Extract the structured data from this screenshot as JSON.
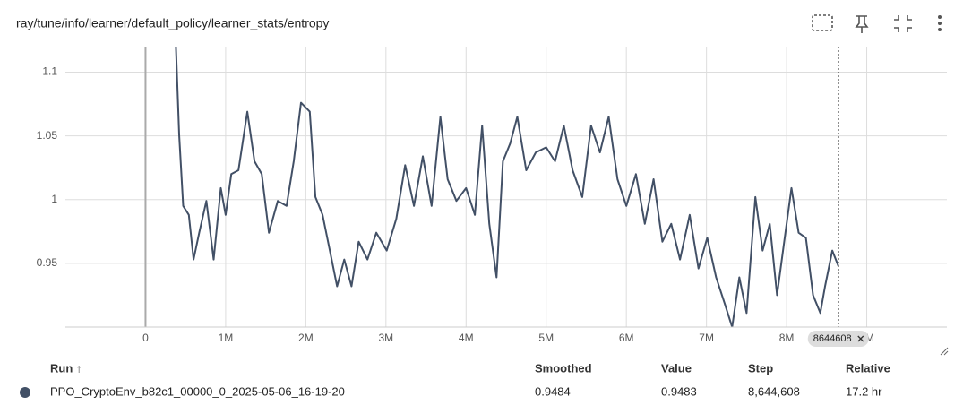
{
  "title": "ray/tune/info/learner/default_policy/learner_stats/entropy",
  "chart_data": {
    "type": "line",
    "x": [
      380000,
      420000,
      470000,
      540000,
      600000,
      670000,
      760000,
      850000,
      940000,
      1000000,
      1070000,
      1160000,
      1270000,
      1360000,
      1450000,
      1540000,
      1650000,
      1760000,
      1850000,
      1940000,
      2050000,
      2120000,
      2210000,
      2300000,
      2390000,
      2480000,
      2570000,
      2660000,
      2770000,
      2880000,
      3010000,
      3130000,
      3240000,
      3350000,
      3460000,
      3570000,
      3680000,
      3770000,
      3880000,
      4000000,
      4110000,
      4200000,
      4290000,
      4380000,
      4460000,
      4550000,
      4640000,
      4750000,
      4870000,
      5000000,
      5110000,
      5220000,
      5330000,
      5450000,
      5560000,
      5670000,
      5780000,
      5890000,
      6000000,
      6120000,
      6230000,
      6340000,
      6450000,
      6560000,
      6670000,
      6790000,
      6900000,
      7010000,
      7120000,
      7230000,
      7320000,
      7410000,
      7500000,
      7610000,
      7700000,
      7790000,
      7880000,
      7970000,
      8060000,
      8150000,
      8240000,
      8330000,
      8420000,
      8480000,
      8570000,
      8644608
    ],
    "series": [
      {
        "name": "PPO_CryptoEnv_b82c1_00000_0_2025-05-06_16-19-20",
        "color": "#425066",
        "values": [
          1.12,
          1.051,
          0.995,
          0.988,
          0.953,
          0.974,
          0.999,
          0.953,
          1.009,
          0.988,
          1.02,
          1.023,
          1.069,
          1.03,
          1.02,
          0.974,
          0.999,
          0.995,
          1.03,
          1.076,
          1.069,
          1.002,
          0.988,
          0.96,
          0.932,
          0.953,
          0.932,
          0.967,
          0.953,
          0.974,
          0.96,
          0.985,
          1.027,
          0.995,
          1.034,
          0.995,
          1.065,
          1.016,
          0.999,
          1.009,
          0.988,
          1.058,
          0.981,
          0.939,
          1.03,
          1.044,
          1.065,
          1.023,
          1.037,
          1.041,
          1.03,
          1.058,
          1.023,
          1.002,
          1.058,
          1.037,
          1.065,
          1.016,
          0.995,
          1.02,
          0.981,
          1.016,
          0.967,
          0.981,
          0.953,
          0.988,
          0.946,
          0.97,
          0.939,
          0.918,
          0.9,
          0.939,
          0.911,
          1.002,
          0.96,
          0.981,
          0.925,
          0.967,
          1.009,
          0.974,
          0.97,
          0.925,
          0.911,
          0.932,
          0.96,
          0.948
        ]
      }
    ],
    "xlim": [
      -1000000,
      10000000
    ],
    "xticks": [
      0,
      {
        "value": 1000000,
        "label": "1M"
      },
      {
        "value": 2000000,
        "label": "2M"
      },
      {
        "value": 3000000,
        "label": "3M"
      },
      {
        "value": 4000000,
        "label": "4M"
      },
      {
        "value": 5000000,
        "label": "5M"
      },
      {
        "value": 6000000,
        "label": "6M"
      },
      {
        "value": 7000000,
        "label": "7M"
      },
      {
        "value": 8000000,
        "label": "8M"
      },
      {
        "value": 9000000,
        "label": "9M"
      }
    ],
    "ylim": [
      0.9,
      1.12
    ],
    "yticks": [
      0.95,
      1,
      1.05,
      1.1
    ],
    "grid": true,
    "cursor": {
      "value": 8644608,
      "label": "8644608"
    }
  },
  "table": {
    "headers": [
      "Run ↑",
      "Smoothed",
      "Value",
      "Step",
      "Relative"
    ],
    "rows": [
      [
        "PPO_CryptoEnv_b82c1_00000_0_2025-05-06_16-19-20",
        "0.9484",
        "0.9483",
        "8,644,608",
        "17.2 hr"
      ]
    ]
  }
}
